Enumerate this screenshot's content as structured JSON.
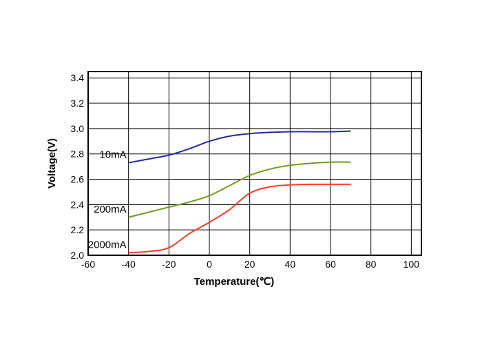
{
  "chart_data": {
    "type": "line",
    "xlabel": "Temperature(℃)",
    "ylabel": "Voltage(V)",
    "xlim": [
      -60,
      105
    ],
    "ylim": [
      2.0,
      3.45
    ],
    "xticks": [
      -60,
      -40,
      -20,
      0,
      20,
      40,
      60,
      80,
      100
    ],
    "xtick_labels": [
      "-60",
      "-40",
      "-20",
      "0",
      "20",
      "40",
      "60",
      "80",
      "100"
    ],
    "yticks": [
      2.0,
      2.2,
      2.4,
      2.6,
      2.8,
      3.0,
      3.2,
      3.4
    ],
    "ytick_labels": [
      "2.0",
      "2.2",
      "2.4",
      "2.6",
      "2.8",
      "3.0",
      "3.2",
      "3.4"
    ],
    "grid": true,
    "legend": "none",
    "series": [
      {
        "name": "10mA",
        "color": "#1f2a9c",
        "x": [
          -40,
          -30,
          -20,
          -10,
          0,
          10,
          20,
          30,
          40,
          50,
          60,
          70
        ],
        "y": [
          2.73,
          2.76,
          2.79,
          2.84,
          2.9,
          2.94,
          2.96,
          2.97,
          2.975,
          2.975,
          2.975,
          2.98
        ]
      },
      {
        "name": "200mA",
        "color": "#6e9b1a",
        "x": [
          -40,
          -30,
          -20,
          -10,
          0,
          10,
          20,
          30,
          40,
          50,
          60,
          70
        ],
        "y": [
          2.3,
          2.34,
          2.38,
          2.42,
          2.47,
          2.55,
          2.63,
          2.68,
          2.71,
          2.725,
          2.735,
          2.735
        ]
      },
      {
        "name": "2000mA",
        "color": "#ff3b1f",
        "x": [
          -40,
          -30,
          -20,
          -10,
          0,
          10,
          20,
          30,
          40,
          50,
          60,
          70
        ],
        "y": [
          2.02,
          2.03,
          2.06,
          2.17,
          2.26,
          2.36,
          2.49,
          2.54,
          2.555,
          2.56,
          2.56,
          2.56
        ]
      }
    ]
  }
}
